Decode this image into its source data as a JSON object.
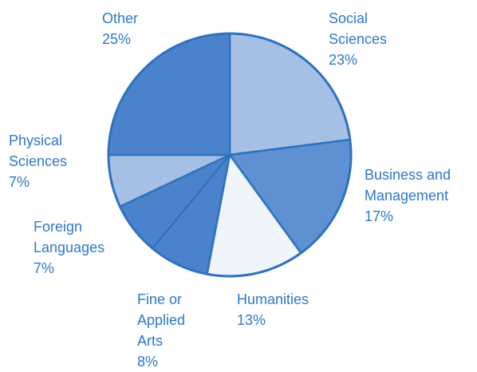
{
  "chart_data": {
    "type": "pie",
    "start_angle_deg": 0,
    "direction": "clockwise",
    "slices": [
      {
        "label": "Social\nSciences",
        "value": 23,
        "value_label": "23%",
        "color": "#a6bfe4"
      },
      {
        "label": "Business and\nManagement",
        "value": 17,
        "value_label": "17%",
        "color": "#5f91d2"
      },
      {
        "label": "Humanities",
        "value": 13,
        "value_label": "13%",
        "color": "#f0f4fb"
      },
      {
        "label": "Fine or\nApplied\nArts",
        "value": 8,
        "value_label": "8%",
        "color": "#4a83cb"
      },
      {
        "label": "Foreign\nLanguages",
        "value": 7,
        "value_label": "7%",
        "color": "#4a83cb"
      },
      {
        "label": "Physical\nSciences",
        "value": 7,
        "value_label": "7%",
        "color": "#a6bfe4"
      },
      {
        "label": "Other",
        "value": 25,
        "value_label": "25%",
        "color": "#4a83cb"
      }
    ],
    "border_color": "#2e72bf",
    "label_color": "#2e78c8"
  }
}
